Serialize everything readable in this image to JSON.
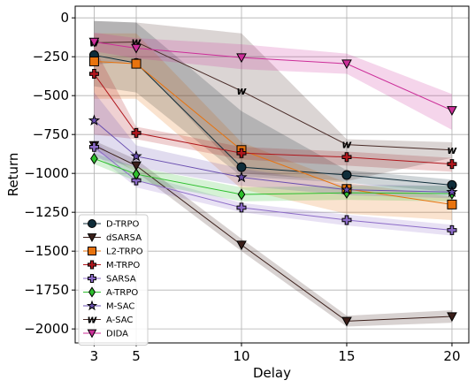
{
  "chart_data": {
    "type": "line",
    "title": "",
    "xlabel": "Delay",
    "ylabel": "Return",
    "x": [
      3,
      5,
      10,
      15,
      20
    ],
    "x_ticks": [
      "3",
      "5",
      "10",
      "15",
      "20"
    ],
    "y_ticks": [
      "0",
      "−250",
      "−500",
      "−750",
      "−1000",
      "−1250",
      "−1500",
      "−1750",
      "−2000"
    ],
    "y_tick_values": [
      0,
      -250,
      -500,
      -750,
      -1000,
      -1250,
      -1500,
      -1750,
      -2000
    ],
    "xlim": [
      2.1,
      20.8
    ],
    "ylim": [
      -2090,
      75
    ],
    "grid": true,
    "legend_position": "lower-left",
    "series": [
      {
        "name": "D-TRPO",
        "color": "#0f2d3a",
        "marker": "circle",
        "values": [
          -240,
          -290,
          -960,
          -1010,
          -1075
        ],
        "lower": [
          -440,
          -480,
          -1020,
          -1060,
          -1120
        ],
        "upper": [
          -20,
          -30,
          -600,
          -980,
          -1040
        ]
      },
      {
        "name": "dSARSA",
        "color": "#3b1f1a",
        "marker": "triangle-down",
        "values": [
          -820,
          -950,
          -1460,
          -1950,
          -1920
        ],
        "lower": [
          -850,
          -990,
          -1500,
          -1985,
          -1960
        ],
        "upper": [
          -790,
          -910,
          -1420,
          -1915,
          -1880
        ]
      },
      {
        "name": "L2-TRPO",
        "color": "#e8730e",
        "marker": "square",
        "values": [
          -280,
          -295,
          -850,
          -1100,
          -1200
        ],
        "lower": [
          -520,
          -520,
          -1100,
          -1260,
          -1300
        ],
        "upper": [
          -100,
          -100,
          -800,
          -1060,
          -1150
        ]
      },
      {
        "name": "M-TRPO",
        "color": "#b0171d",
        "marker": "plus",
        "values": [
          -360,
          -740,
          -870,
          -895,
          -940
        ],
        "lower": [
          -750,
          -780,
          -910,
          -950,
          -990
        ],
        "upper": [
          -190,
          -700,
          -830,
          -860,
          -900
        ]
      },
      {
        "name": "SARSA",
        "color": "#8c6bc8",
        "marker": "plus",
        "values": [
          -830,
          -1045,
          -1220,
          -1300,
          -1365
        ],
        "lower": [
          -870,
          -1090,
          -1250,
          -1335,
          -1400
        ],
        "upper": [
          -790,
          -1000,
          -1190,
          -1265,
          -1330
        ]
      },
      {
        "name": "A-TRPO",
        "color": "#2dbf2d",
        "marker": "diamond",
        "values": [
          -905,
          -1005,
          -1135,
          -1125,
          -1130
        ],
        "lower": [
          -940,
          -1050,
          -1180,
          -1170,
          -1180
        ],
        "upper": [
          -870,
          -960,
          -1090,
          -1080,
          -1080
        ]
      },
      {
        "name": "M-SAC",
        "color": "#6a4fb0",
        "marker": "star",
        "values": [
          -660,
          -890,
          -1025,
          -1105,
          -1120
        ],
        "lower": [
          -900,
          -960,
          -1080,
          -1140,
          -1160
        ],
        "upper": [
          -480,
          -820,
          -970,
          -1070,
          -1080
        ]
      },
      {
        "name": "A-SAC",
        "color": "#4a2c28",
        "marker": "w",
        "values": [
          -160,
          -155,
          -470,
          -815,
          -850
        ],
        "lower": [
          -300,
          -280,
          -1000,
          -1050,
          -900
        ],
        "upper": [
          -20,
          -30,
          -100,
          -780,
          -800
        ]
      },
      {
        "name": "DIDA",
        "color": "#cc2e99",
        "marker": "triangle-down",
        "values": [
          -155,
          -195,
          -255,
          -295,
          -595
        ],
        "lower": [
          -215,
          -260,
          -330,
          -360,
          -720
        ],
        "upper": [
          -95,
          -130,
          -170,
          -230,
          -490
        ]
      }
    ]
  }
}
